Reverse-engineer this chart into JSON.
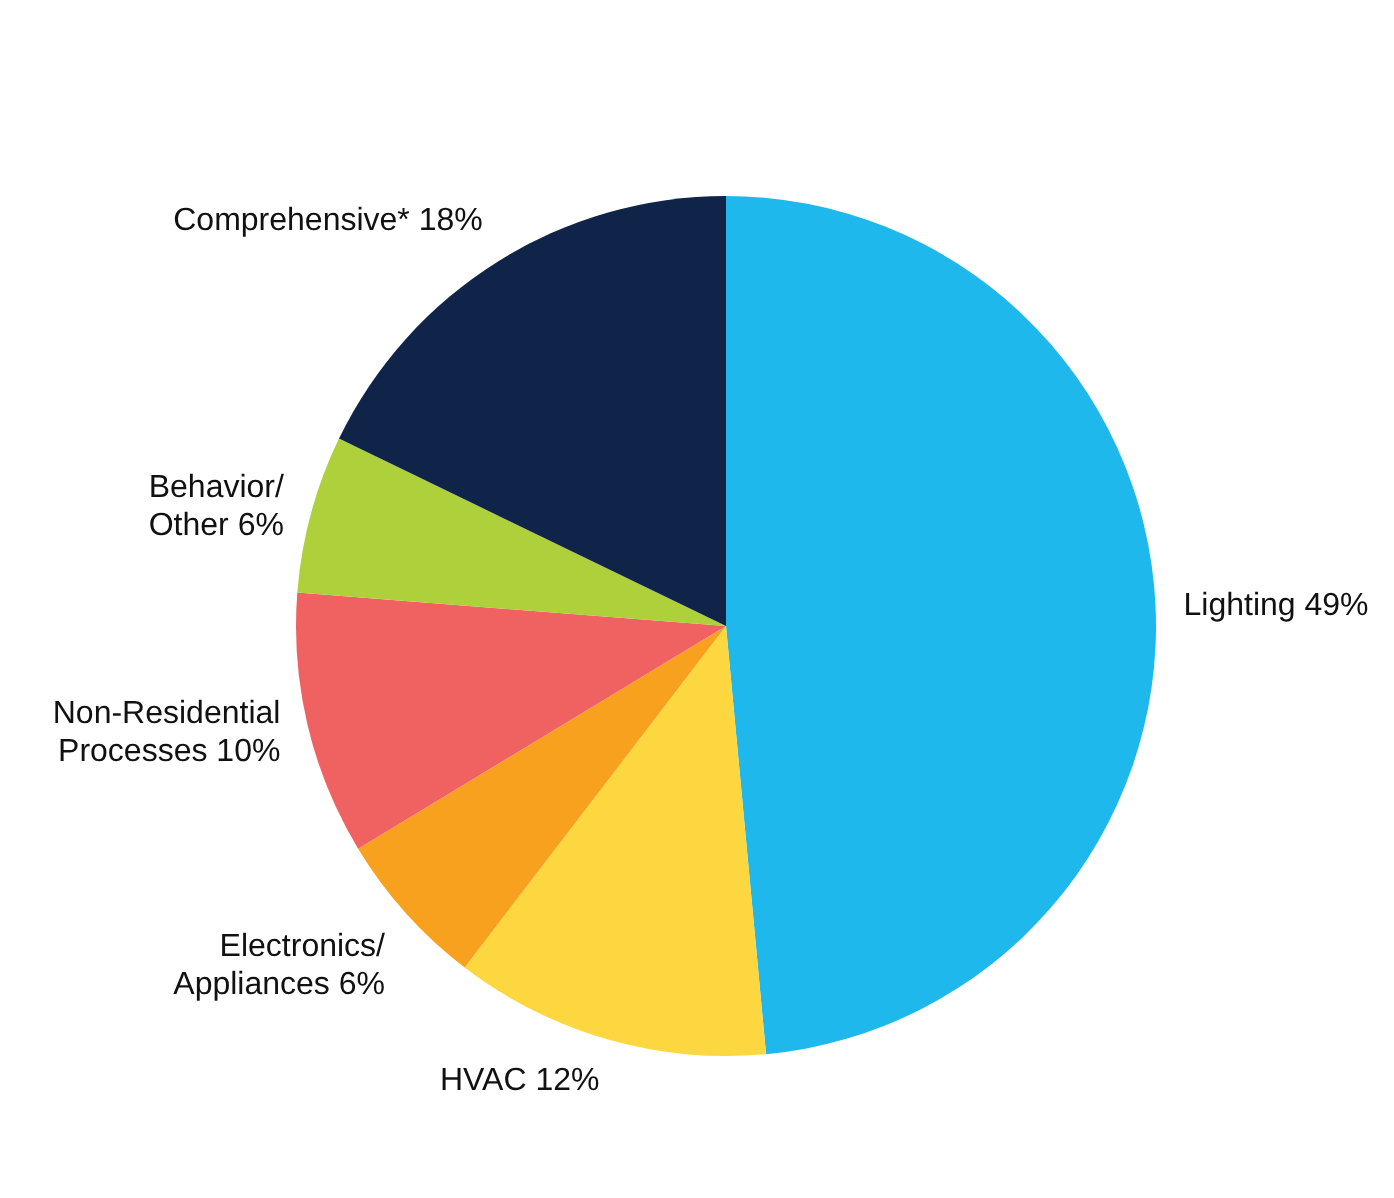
{
  "chart_data": {
    "type": "pie",
    "categories": [
      "Lighting",
      "HVAC",
      "Electronics/Appliances",
      "Non-Residential Processes",
      "Behavior/Other",
      "Comprehensive*"
    ],
    "values": [
      49,
      12,
      6,
      10,
      6,
      18
    ],
    "value_labels": [
      "49%",
      "12%",
      "6%",
      "10%",
      "6%",
      "18%"
    ],
    "colors": [
      "#1fb8ec",
      "#fdd73f",
      "#f7a11f",
      "#f06262",
      "#aed03a",
      "#10244a"
    ],
    "legend": false
  }
}
